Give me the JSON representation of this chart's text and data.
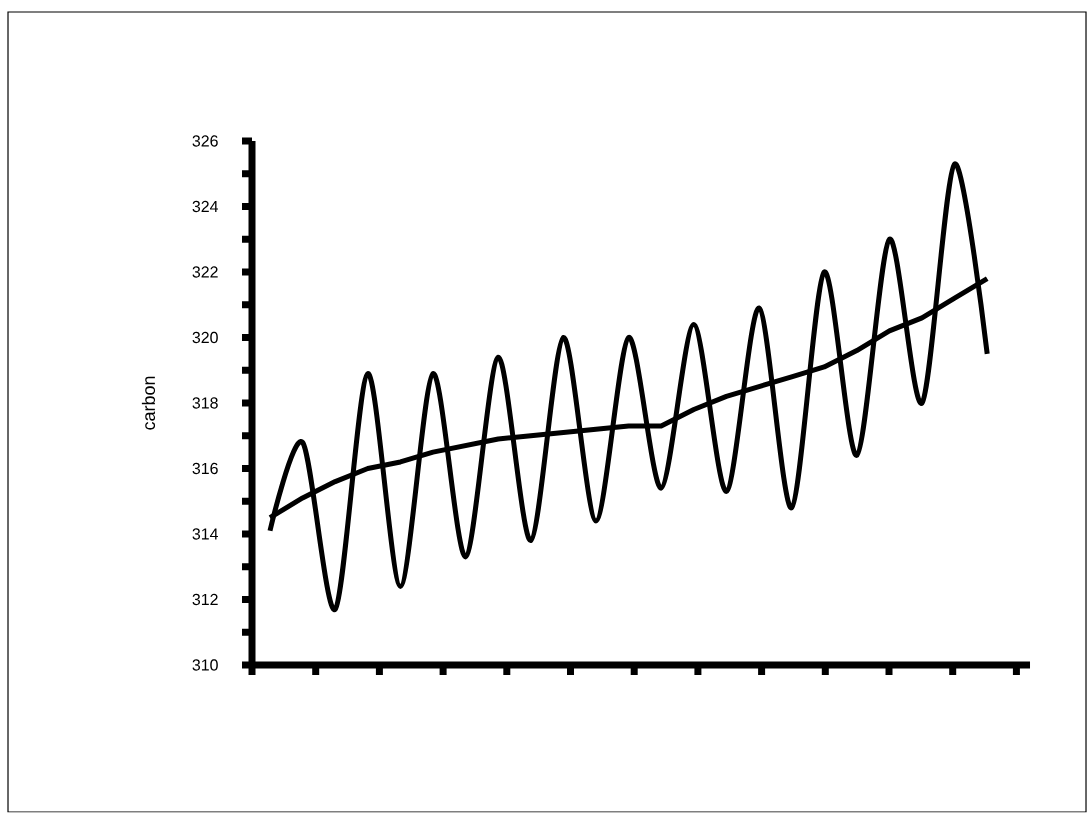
{
  "chart_data": {
    "type": "line",
    "ylabel": "carbon",
    "categories": [
      null,
      null,
      null,
      null,
      null,
      null,
      null,
      null,
      null,
      null,
      null,
      null,
      null,
      null,
      null,
      null,
      null,
      null,
      null,
      null,
      null,
      null,
      null
    ],
    "series": [
      {
        "color": "#000000",
        "values": [
          314.1,
          316.8,
          311.7,
          318.9,
          312.4,
          318.9,
          313.3,
          319.4,
          313.8,
          320.0,
          314.4,
          320.0,
          315.4,
          320.4,
          315.3,
          320.9,
          314.8,
          322.0,
          316.4,
          323.0,
          318.0,
          325.3,
          319.5
        ]
      },
      {
        "color": "#000000",
        "values": [
          314.5,
          315.1,
          315.6,
          316.0,
          316.2,
          316.5,
          316.7,
          316.9,
          317.0,
          317.1,
          317.2,
          317.3,
          317.3,
          317.8,
          318.2,
          318.5,
          318.8,
          319.1,
          319.6,
          320.2,
          320.6,
          321.2,
          321.8
        ]
      }
    ],
    "ylim": [
      310,
      326
    ],
    "yticks": [
      310,
      312,
      314,
      316,
      318,
      320,
      322,
      324,
      326
    ],
    "tick_labels": "y",
    "grid": false
  }
}
